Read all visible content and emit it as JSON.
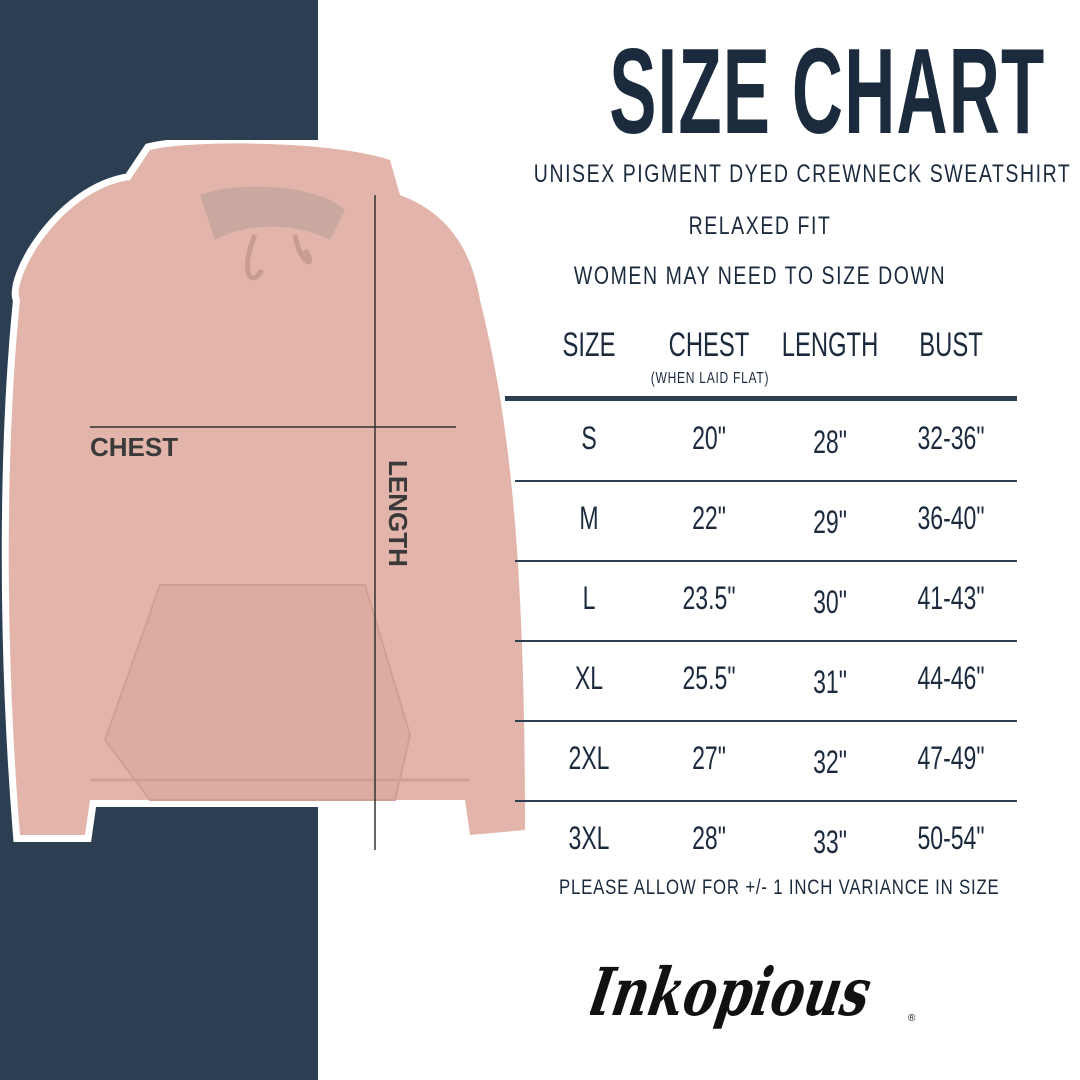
{
  "title": "SIZE CHART",
  "subtitle_lines": [
    "UNISEX PIGMENT DYED CREWNECK SWEATSHIRT",
    "RELAXED FIT",
    "WOMEN MAY NEED TO SIZE DOWN"
  ],
  "diagram": {
    "chest_label": "CHEST",
    "length_label": "LENGTH"
  },
  "table": {
    "headers": [
      "SIZE",
      "CHEST",
      "LENGTH",
      "BUST"
    ],
    "chest_note": "(WHEN LAID FLAT)",
    "rows": [
      [
        "S",
        "20\"",
        "28\"",
        "32-36\""
      ],
      [
        "M",
        "22\"",
        "29\"",
        "36-40\""
      ],
      [
        "L",
        "23.5\"",
        "30\"",
        "41-43\""
      ],
      [
        "XL",
        "25.5\"",
        "31\"",
        "44-46\""
      ],
      [
        "2XL",
        "27\"",
        "32\"",
        "47-49\""
      ],
      [
        "3XL",
        "28\"",
        "33\"",
        "50-54\""
      ]
    ]
  },
  "footnote": "PLEASE ALLOW FOR +/- 1 INCH VARIANCE IN SIZE",
  "brand": "Inkopious",
  "colors": {
    "navy": "#2c3f52",
    "text": "#1b2a3d",
    "hoodie": "#e3b5aa"
  }
}
